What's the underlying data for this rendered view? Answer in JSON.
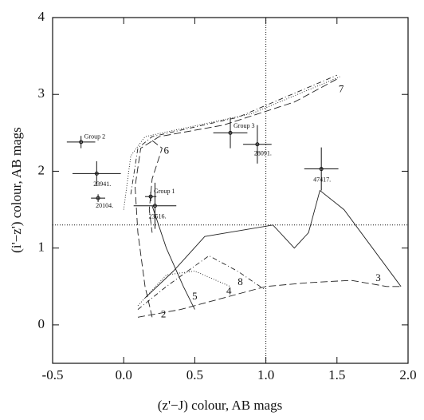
{
  "chart_data": {
    "type": "scatter",
    "x_label": "(z'−J) colour, AB mags",
    "y_label": "(i'−z') colour, AB mags",
    "xlim": [
      -0.5,
      2.0
    ],
    "ylim": [
      -0.5,
      4
    ],
    "xticks": [
      -0.5,
      {
        "value": 0,
        "label": "0.0"
      },
      0.5,
      {
        "value": 1,
        "label": "1.0"
      },
      1.5,
      {
        "value": 2,
        "label": "2.0"
      }
    ],
    "yticks": [
      0,
      1,
      2,
      3,
      4
    ],
    "ref_x": 1.0,
    "ref_y": 1.3,
    "points": {
      "labels": [
        "Group 2",
        "23941.",
        "20104.",
        "Group 1",
        "23516.",
        "Group 3",
        "28091.",
        "47417."
      ],
      "x": [
        -0.3,
        -0.19,
        -0.18,
        0.19,
        0.22,
        0.75,
        0.94,
        1.39
      ],
      "y": [
        2.38,
        1.97,
        1.65,
        1.67,
        1.55,
        2.5,
        2.35,
        2.03
      ],
      "xerr": [
        0.1,
        0.17,
        0.05,
        0.04,
        0.15,
        0.12,
        0.1,
        0.12
      ],
      "yerr": [
        0.08,
        0.16,
        0.05,
        0.06,
        0.3,
        0.2,
        0.25,
        0.28
      ],
      "color": "#111111"
    },
    "lines": [
      {
        "style": "longdash",
        "color": "#222222",
        "x": [
          0.2,
          0.15,
          0.1,
          0.08,
          0.12,
          0.25,
          0.7,
          1.2,
          1.5
        ],
        "y": [
          0.1,
          0.5,
          1.2,
          1.8,
          2.3,
          2.45,
          2.6,
          2.9,
          3.2
        ]
      },
      {
        "style": "dashdot",
        "color": "#222222",
        "x": [
          0.05,
          0.1,
          0.2,
          0.8,
          1.5
        ],
        "y": [
          1.7,
          2.3,
          2.45,
          2.7,
          3.25
        ]
      },
      {
        "style": "dotted",
        "color": "#222222",
        "x": [
          0.0,
          0.05,
          0.15,
          0.9,
          1.52
        ],
        "y": [
          1.5,
          2.2,
          2.45,
          2.75,
          3.23
        ]
      },
      {
        "style": "longdash",
        "color": "#222222",
        "x": [
          0.2,
          0.27,
          0.2,
          0.18,
          0.2
        ],
        "y": [
          2.4,
          2.3,
          1.9,
          1.5,
          1.2
        ]
      },
      {
        "style": "solid",
        "color": "#222222",
        "x": [
          0.2,
          0.3,
          0.42,
          0.5
        ],
        "y": [
          1.55,
          1.0,
          0.5,
          0.2
        ]
      },
      {
        "style": "solid",
        "color": "#222222",
        "x": [
          0.15,
          0.35,
          0.57,
          1.05,
          1.2,
          1.3,
          1.38,
          1.55,
          1.95
        ],
        "y": [
          0.35,
          0.7,
          1.15,
          1.3,
          1.0,
          1.2,
          1.75,
          1.5,
          0.5
        ]
      },
      {
        "style": "longdash",
        "color": "#222222",
        "x": [
          0.1,
          0.4,
          0.8,
          1.0,
          1.3,
          1.6,
          1.85,
          1.95
        ],
        "y": [
          0.1,
          0.2,
          0.4,
          0.5,
          0.55,
          0.58,
          0.5,
          0.5
        ]
      },
      {
        "style": "dashdot",
        "color": "#222222",
        "x": [
          0.1,
          0.3,
          0.6,
          0.8,
          1.0
        ],
        "y": [
          0.2,
          0.5,
          0.9,
          0.7,
          0.45
        ]
      },
      {
        "style": "dotted",
        "color": "#222222",
        "x": [
          0.1,
          0.3,
          0.5,
          0.75
        ],
        "y": [
          0.25,
          0.65,
          0.7,
          0.5
        ]
      }
    ],
    "annotations": [
      {
        "text": "2",
        "x": 0.28,
        "y": 0.13
      },
      {
        "text": "3",
        "x": 1.79,
        "y": 0.6
      },
      {
        "text": "4",
        "x": 0.74,
        "y": 0.43
      },
      {
        "text": "5",
        "x": 0.5,
        "y": 0.36
      },
      {
        "text": "6",
        "x": 0.3,
        "y": 2.26
      },
      {
        "text": "7",
        "x": 1.53,
        "y": 3.06
      },
      {
        "text": "8",
        "x": 0.82,
        "y": 0.55
      }
    ]
  }
}
